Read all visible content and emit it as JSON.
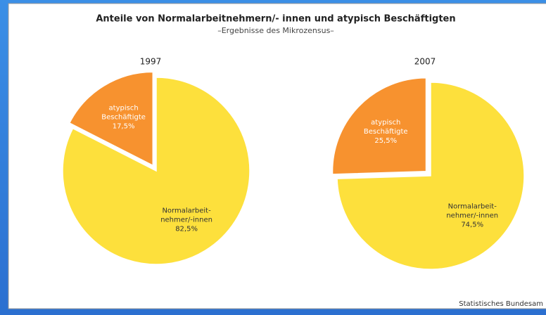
{
  "title": "Anteile von Normalarbeitnehmern/- innen und atypisch Beschäftigten",
  "subtitle": "–Ergebnisse des Mikrozensus–",
  "source": "Statistisches Bundesam",
  "chart_data": [
    {
      "type": "pie",
      "title": "1997",
      "categories": [
        [
          "Normalarbeit-",
          "nehmer/-innen"
        ],
        [
          "atypisch",
          "Beschäftigte"
        ]
      ],
      "values": [
        82.5,
        17.5
      ],
      "value_labels": [
        "82,5%",
        "17,5%"
      ],
      "colors": [
        "#fde03c",
        "#f7922f"
      ],
      "label_colors": [
        "#333333",
        "#ffffff"
      ]
    },
    {
      "type": "pie",
      "title": "2007",
      "categories": [
        [
          "Normalarbeit-",
          "nehmer/-innen"
        ],
        [
          "atypisch",
          "Beschäftigte"
        ]
      ],
      "values": [
        74.5,
        25.5
      ],
      "value_labels": [
        "74,5%",
        "25,5%"
      ],
      "colors": [
        "#fde03c",
        "#f7922f"
      ],
      "label_colors": [
        "#333333",
        "#ffffff"
      ]
    }
  ]
}
